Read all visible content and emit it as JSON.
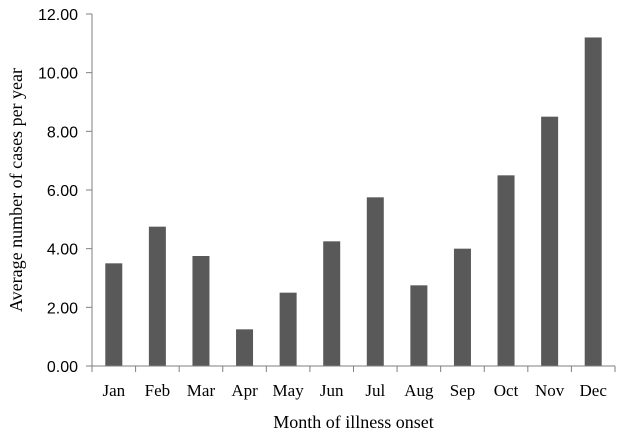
{
  "chart_data": {
    "type": "bar",
    "categories": [
      "Jan",
      "Feb",
      "Mar",
      "Apr",
      "May",
      "Jun",
      "Jul",
      "Aug",
      "Sep",
      "Oct",
      "Nov",
      "Dec"
    ],
    "values": [
      3.5,
      4.75,
      3.75,
      1.25,
      2.5,
      4.25,
      5.75,
      2.75,
      4.0,
      6.5,
      8.5,
      11.2
    ],
    "title": "",
    "xlabel": "Month of illness onset",
    "ylabel": "Average number of cases per year",
    "ylim": [
      0,
      12
    ],
    "yticks": [
      "0.00",
      "2.00",
      "4.00",
      "6.00",
      "8.00",
      "10.00",
      "12.00"
    ],
    "grid": false,
    "bar_color": "#595959",
    "axis_color": "#7f7f7f"
  }
}
